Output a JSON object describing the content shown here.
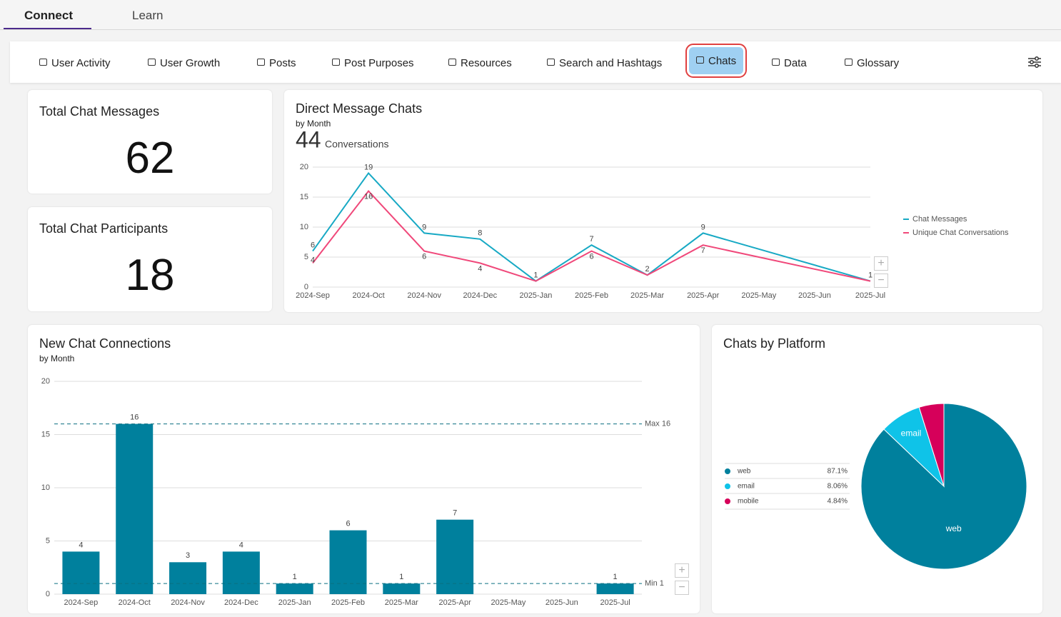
{
  "tabs": [
    {
      "label": "Connect",
      "active": true
    },
    {
      "label": "Learn",
      "active": false
    }
  ],
  "nav": {
    "items": [
      "User Activity",
      "User Growth",
      "Posts",
      "Post Purposes",
      "Resources",
      "Search and Hashtags",
      "Chats",
      "Data",
      "Glossary"
    ],
    "active": "Chats"
  },
  "cards": [
    {
      "title": "Total Chat Messages",
      "value": 62
    },
    {
      "title": "Total Chat Participants",
      "value": 18
    }
  ],
  "chart_data": [
    {
      "type": "line",
      "title": "Direct Message Chats",
      "subtitle": "by Month",
      "stat": {
        "value": 44,
        "label": "Conversations"
      },
      "categories": [
        "2024-Sep",
        "2024-Oct",
        "2024-Nov",
        "2024-Dec",
        "2025-Jan",
        "2025-Feb",
        "2025-Mar",
        "2025-Apr",
        "2025-May",
        "2025-Jun",
        "2025-Jul"
      ],
      "series": [
        {
          "name": "Chat Messages",
          "color": "#17a9c4",
          "x": [
            "2024-Sep",
            "2024-Oct",
            "2024-Nov",
            "2024-Dec",
            "2025-Jan",
            "2025-Feb",
            "2025-Mar",
            "2025-Apr",
            "2025-Jul"
          ],
          "values": [
            6,
            19,
            9,
            8,
            1,
            7,
            2,
            9,
            1
          ]
        },
        {
          "name": "Unique Chat Conversations",
          "color": "#f0487a",
          "x": [
            "2024-Sep",
            "2024-Oct",
            "2024-Nov",
            "2024-Dec",
            "2025-Jan",
            "2025-Feb",
            "2025-Mar",
            "2025-Apr",
            "2025-Jul"
          ],
          "values": [
            4,
            16,
            6,
            4,
            1,
            6,
            2,
            7,
            1
          ]
        }
      ],
      "ylim": [
        0,
        20
      ],
      "yticks": [
        0,
        5,
        10,
        15,
        20
      ],
      "grid": true,
      "legend": "right"
    },
    {
      "type": "bar",
      "title": "New Chat Connections",
      "subtitle": "by Month",
      "categories": [
        "2024-Sep",
        "2024-Oct",
        "2024-Nov",
        "2024-Dec",
        "2025-Jan",
        "2025-Feb",
        "2025-Mar",
        "2025-Apr",
        "2025-May",
        "2025-Jun",
        "2025-Jul"
      ],
      "values": [
        4,
        16,
        3,
        4,
        1,
        6,
        1,
        7,
        null,
        null,
        1
      ],
      "color": "#00809d",
      "ylim": [
        0,
        20
      ],
      "yticks": [
        0,
        5,
        10,
        15,
        20
      ],
      "grid": true,
      "reference_lines": [
        {
          "label": "Max 16",
          "value": 16
        },
        {
          "label": "Min 1",
          "value": 1
        }
      ]
    },
    {
      "type": "pie",
      "title": "Chats by Platform",
      "categories": [
        "web",
        "email",
        "mobile"
      ],
      "values": [
        87.1,
        8.06,
        4.84
      ],
      "value_labels": [
        "87.1%",
        "8.06%",
        "4.84%"
      ],
      "colors": [
        "#00809d",
        "#0fc3e8",
        "#d6005a"
      ],
      "legend": "left"
    }
  ]
}
